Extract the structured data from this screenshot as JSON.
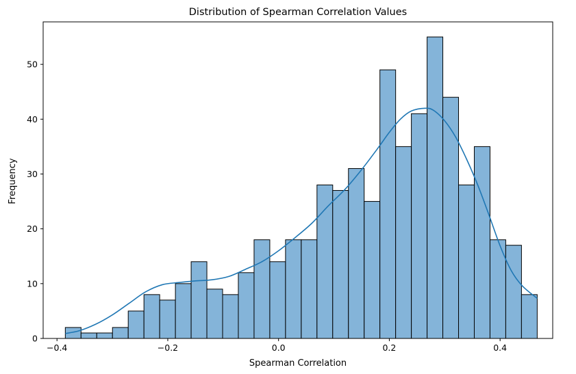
{
  "chart_data": {
    "type": "bar",
    "title": "Distribution of Spearman Correlation Values",
    "xlabel": "Spearman Correlation",
    "ylabel": "Frequency",
    "xlim": [
      -0.425,
      0.495
    ],
    "ylim": [
      0,
      57.75
    ],
    "x_ticks": [
      -0.4,
      -0.2,
      0.0,
      0.2,
      0.4
    ],
    "x_tick_labels": [
      "−0.4",
      "−0.2",
      "0.0",
      "0.2",
      "0.4"
    ],
    "y_ticks": [
      0,
      10,
      20,
      30,
      40,
      50
    ],
    "y_tick_labels": [
      "0",
      "10",
      "20",
      "30",
      "40",
      "50"
    ],
    "bin_start": -0.385,
    "bin_width": 0.0284,
    "values": [
      2,
      1,
      1,
      2,
      5,
      8,
      7,
      10,
      14,
      9,
      8,
      12,
      18,
      14,
      18,
      18,
      28,
      27,
      31,
      25,
      49,
      35,
      41,
      55,
      44,
      28,
      35,
      18,
      17,
      8
    ],
    "kde": {
      "x": [
        -0.385,
        -0.36,
        -0.33,
        -0.3,
        -0.27,
        -0.24,
        -0.21,
        -0.18,
        -0.15,
        -0.12,
        -0.09,
        -0.06,
        -0.03,
        0.0,
        0.03,
        0.06,
        0.09,
        0.12,
        0.15,
        0.18,
        0.2,
        0.22,
        0.24,
        0.265,
        0.28,
        0.3,
        0.32,
        0.34,
        0.36,
        0.38,
        0.4,
        0.42,
        0.44,
        0.467
      ],
      "y": [
        0.9,
        1.4,
        2.6,
        4.3,
        6.4,
        8.5,
        9.8,
        10.2,
        10.5,
        10.7,
        11.3,
        12.6,
        14.0,
        16.0,
        18.4,
        21.0,
        24.2,
        27.2,
        30.8,
        34.8,
        37.6,
        40.0,
        41.5,
        42.0,
        41.6,
        39.7,
        36.7,
        32.6,
        27.9,
        22.5,
        16.9,
        12.4,
        9.6,
        7.3
      ]
    },
    "bar_fill": "#84b4d9",
    "bar_edge": "#000000",
    "line_color": "#1f77b4",
    "grid": false
  }
}
